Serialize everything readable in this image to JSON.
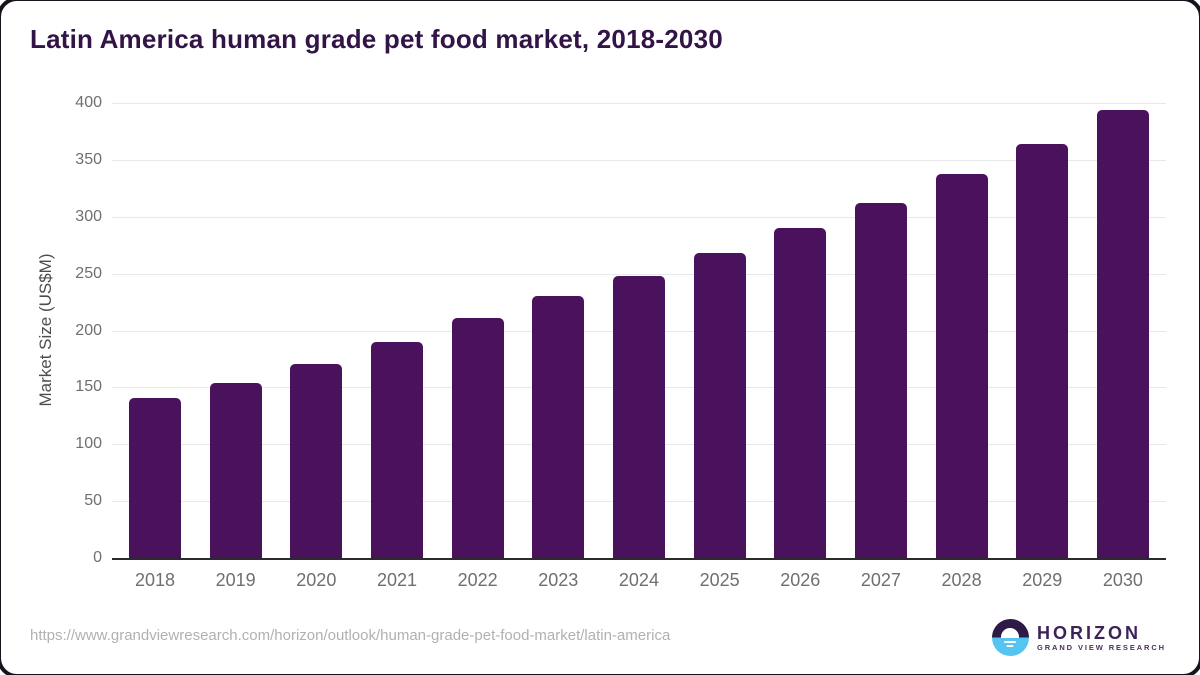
{
  "header": {
    "title": "Latin America human grade pet food market, 2018-2030"
  },
  "chart_data": {
    "type": "bar",
    "title": "Latin America human grade pet food market, 2018-2030",
    "categories": [
      "2018",
      "2019",
      "2020",
      "2021",
      "2022",
      "2023",
      "2024",
      "2025",
      "2026",
      "2027",
      "2028",
      "2029",
      "2030"
    ],
    "values": [
      141,
      154,
      171,
      190,
      211,
      230,
      248,
      268,
      290,
      312,
      338,
      364,
      394
    ],
    "xlabel": "",
    "ylabel": "Market Size (US$M)",
    "ylim": [
      0,
      400
    ],
    "yticks": [
      0,
      50,
      100,
      150,
      200,
      250,
      300,
      350,
      400
    ],
    "grid": "horizontal",
    "legend": "none"
  },
  "footer": {
    "source_url": "https://www.grandviewresearch.com/horizon/outlook/human-grade-pet-food-market/latin-america",
    "logo": {
      "icon": "horizon-sun-circle-icon",
      "name": "HORIZON",
      "subtitle": "GRAND VIEW RESEARCH"
    }
  },
  "colors": {
    "bar": "#4a115c",
    "title": "#321447",
    "axis_label": "#4d4d4d",
    "tick": "#6f6f6f",
    "gridline": "#e8e8e8",
    "axis_line": "#2b2b2b",
    "url": "#b1b1b1",
    "logo_purple": "#2e1a47",
    "logo_blue": "#56c4f1",
    "logo_text": "#3b2356",
    "logo_sub": "#4a3160"
  }
}
